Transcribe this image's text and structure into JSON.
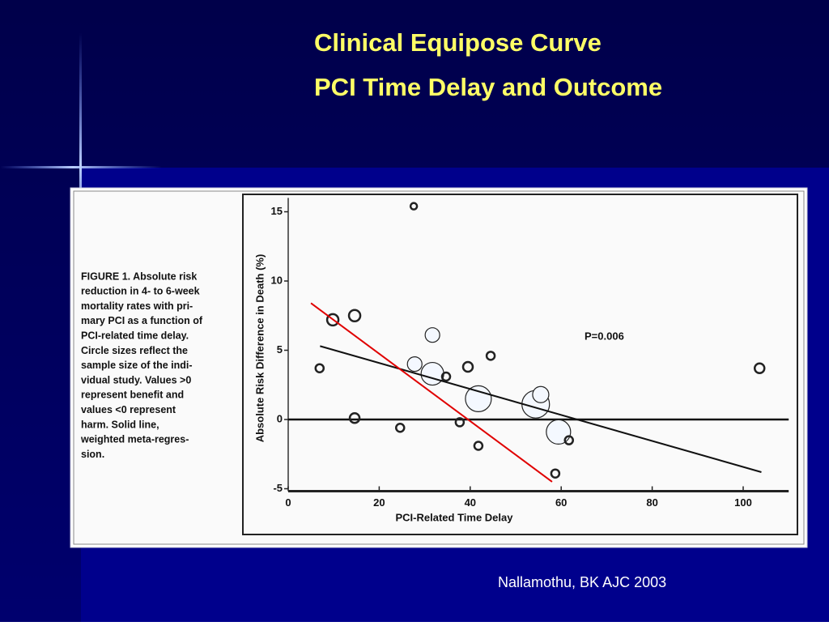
{
  "slide": {
    "title": [
      "Clinical Equipose Curve",
      "PCI Time Delay and Outcome"
    ],
    "citation": "Nallamothu, BK AJC 2003"
  },
  "figure_caption": [
    "FIGURE 1. Absolute risk",
    "reduction in 4- to 6-week",
    "mortality rates with pri-",
    "mary PCI as a function of",
    "PCI-related time delay.",
    "Circle sizes reflect the",
    "sample size of the indi-",
    "vidual study. Values >0",
    "represent benefit and",
    "values <0 represent",
    "harm. Solid line,",
    "weighted meta-regres-",
    "sion."
  ],
  "chart_data": {
    "type": "bubble",
    "x_label": "PCI-Related Time Delay",
    "y_label": "Absolute Risk Difference in Death (%)",
    "annotation": "P=0.006",
    "x": [
      6.9,
      9.8,
      14.6,
      14.6,
      27.6,
      24.6,
      27.8,
      31.7,
      31.7,
      34.7,
      37.7,
      39.5,
      41.8,
      41.8,
      44.5,
      54.4,
      55.5,
      58.7,
      59.4,
      61.7,
      103.6
    ],
    "values": [
      3.7,
      7.2,
      7.5,
      0.1,
      15.4,
      -0.6,
      4.0,
      6.1,
      3.3,
      3.1,
      -0.2,
      3.8,
      1.5,
      -1.9,
      4.6,
      1.1,
      1.8,
      -3.9,
      -0.9,
      -1.5,
      3.7
    ],
    "sizes": [
      5,
      7,
      7,
      6,
      4,
      5,
      9,
      9,
      14,
      5,
      5,
      6,
      16,
      5,
      5,
      17,
      10,
      5,
      15,
      5,
      6
    ],
    "color": "#222222",
    "lines": [
      {
        "color": "#111111",
        "x": [
          7,
          104
        ],
        "values": [
          5.3,
          -3.8
        ]
      },
      {
        "color": "#e00000",
        "x": [
          5,
          58
        ],
        "values": [
          8.4,
          -4.5
        ]
      }
    ],
    "reference_line": 0,
    "xlim": [
      0,
      110
    ],
    "ylim": [
      -5,
      16
    ],
    "xticks": [
      0,
      20,
      40,
      60,
      80,
      100
    ],
    "yticks": [
      -5,
      0,
      5,
      10,
      15
    ]
  }
}
